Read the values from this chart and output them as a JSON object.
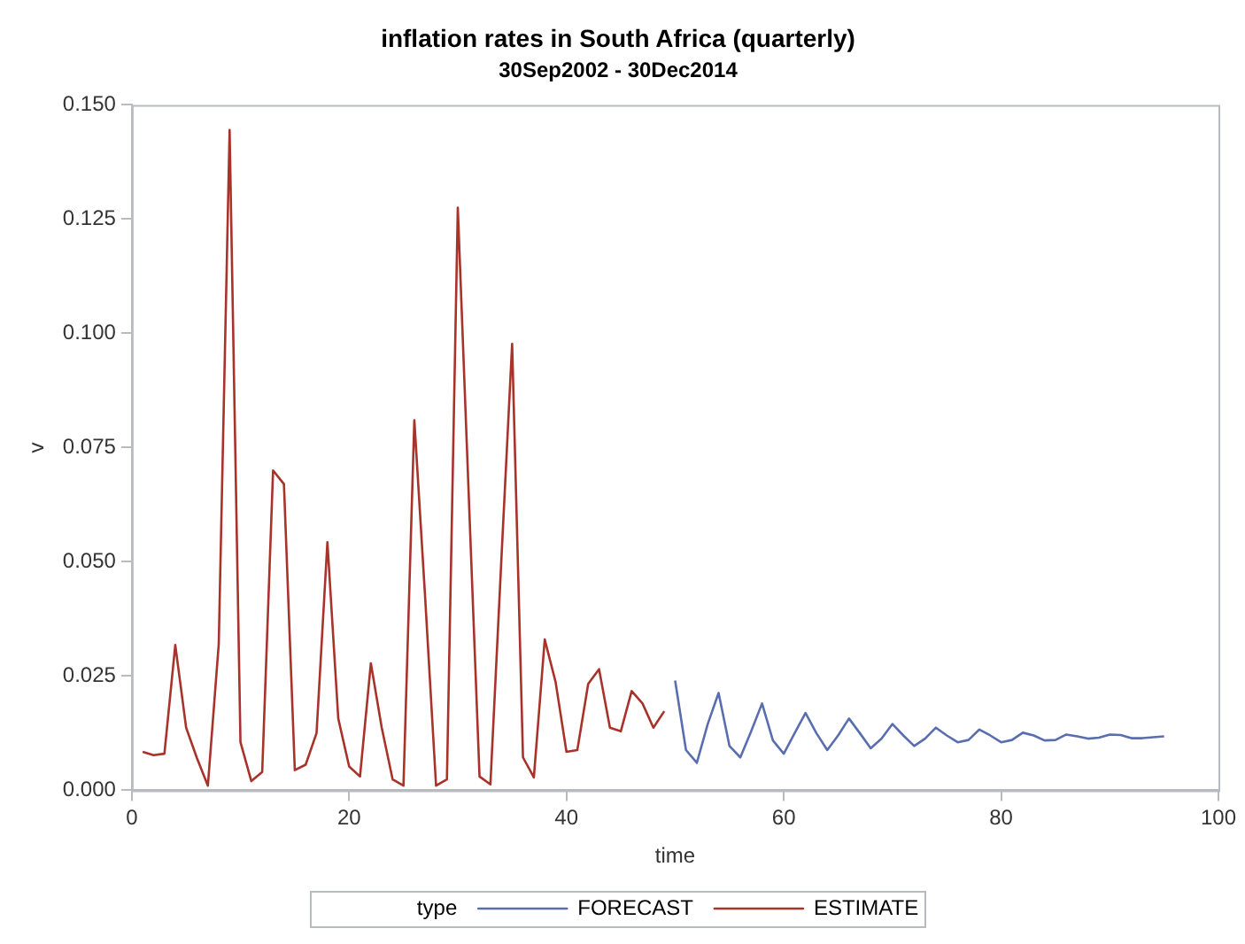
{
  "chart_data": {
    "type": "line",
    "title": "inflation rates in South Africa (quarterly)",
    "subtitle": "30Sep2002 - 30Dec2014",
    "xlabel": "time",
    "ylabel": "v",
    "legend_title": "type",
    "legend": "bottom",
    "grid": false,
    "marker": "none",
    "line_style": "solid",
    "xlim": [
      0,
      100
    ],
    "xticks": [
      0,
      20,
      40,
      60,
      80,
      100
    ],
    "ylim": [
      0,
      0.15
    ],
    "yticks": [
      {
        "value": 0,
        "label": "0.000"
      },
      {
        "value": 0.025,
        "label": "0.025"
      },
      {
        "value": 0.05,
        "label": "0.050"
      },
      {
        "value": 0.075,
        "label": "0.075"
      },
      {
        "value": 0.1,
        "label": "0.100"
      },
      {
        "value": 0.125,
        "label": "0.125"
      },
      {
        "value": 0.15,
        "label": "0.150"
      }
    ],
    "series": [
      {
        "name": "FORECAST",
        "color": "#5a6eaf",
        "x": [
          50,
          51,
          52,
          53,
          54,
          55,
          56,
          57,
          58,
          59,
          60,
          61,
          62,
          63,
          64,
          65,
          66,
          67,
          68,
          69,
          70,
          71,
          72,
          73,
          74,
          75,
          76,
          77,
          78,
          79,
          80,
          81,
          82,
          83,
          84,
          85,
          86,
          87,
          88,
          89,
          90,
          91,
          92,
          93,
          94,
          95
        ],
        "values": [
          0.024,
          0.0088,
          0.006,
          0.0145,
          0.0213,
          0.0097,
          0.0072,
          0.0129,
          0.019,
          0.0109,
          0.008,
          0.0125,
          0.0169,
          0.0125,
          0.0088,
          0.012,
          0.0157,
          0.0125,
          0.0092,
          0.0113,
          0.0145,
          0.012,
          0.0097,
          0.0113,
          0.0137,
          0.012,
          0.0105,
          0.011,
          0.0133,
          0.012,
          0.0105,
          0.011,
          0.0126,
          0.012,
          0.0109,
          0.011,
          0.0122,
          0.0118,
          0.0113,
          0.0115,
          0.0122,
          0.0121,
          0.0114,
          0.0114,
          0.0116,
          0.0118
        ]
      },
      {
        "name": "ESTIMATE",
        "color": "#a8332a",
        "x": [
          1,
          2,
          3,
          4,
          5,
          6,
          7,
          8,
          9,
          10,
          11,
          12,
          13,
          14,
          15,
          16,
          17,
          18,
          19,
          20,
          21,
          22,
          23,
          24,
          25,
          26,
          27,
          28,
          29,
          30,
          31,
          32,
          33,
          34,
          35,
          36,
          37,
          38,
          39,
          40,
          41,
          42,
          43,
          44,
          45,
          46,
          47,
          48,
          49
        ],
        "values": [
          0.0084,
          0.0077,
          0.008,
          0.0318,
          0.0137,
          0.007,
          0.001,
          0.032,
          0.1445,
          0.0105,
          0.002,
          0.004,
          0.07,
          0.067,
          0.0044,
          0.0056,
          0.0125,
          0.0543,
          0.0157,
          0.0052,
          0.003,
          0.0278,
          0.0137,
          0.0024,
          0.001,
          0.081,
          0.042,
          0.001,
          0.0024,
          0.1275,
          0.065,
          0.003,
          0.0013,
          0.05,
          0.0977,
          0.0072,
          0.0028,
          0.033,
          0.0237,
          0.0084,
          0.0088,
          0.0233,
          0.0265,
          0.0137,
          0.0129,
          0.0217,
          0.019,
          0.0137,
          0.0173
        ]
      }
    ]
  }
}
